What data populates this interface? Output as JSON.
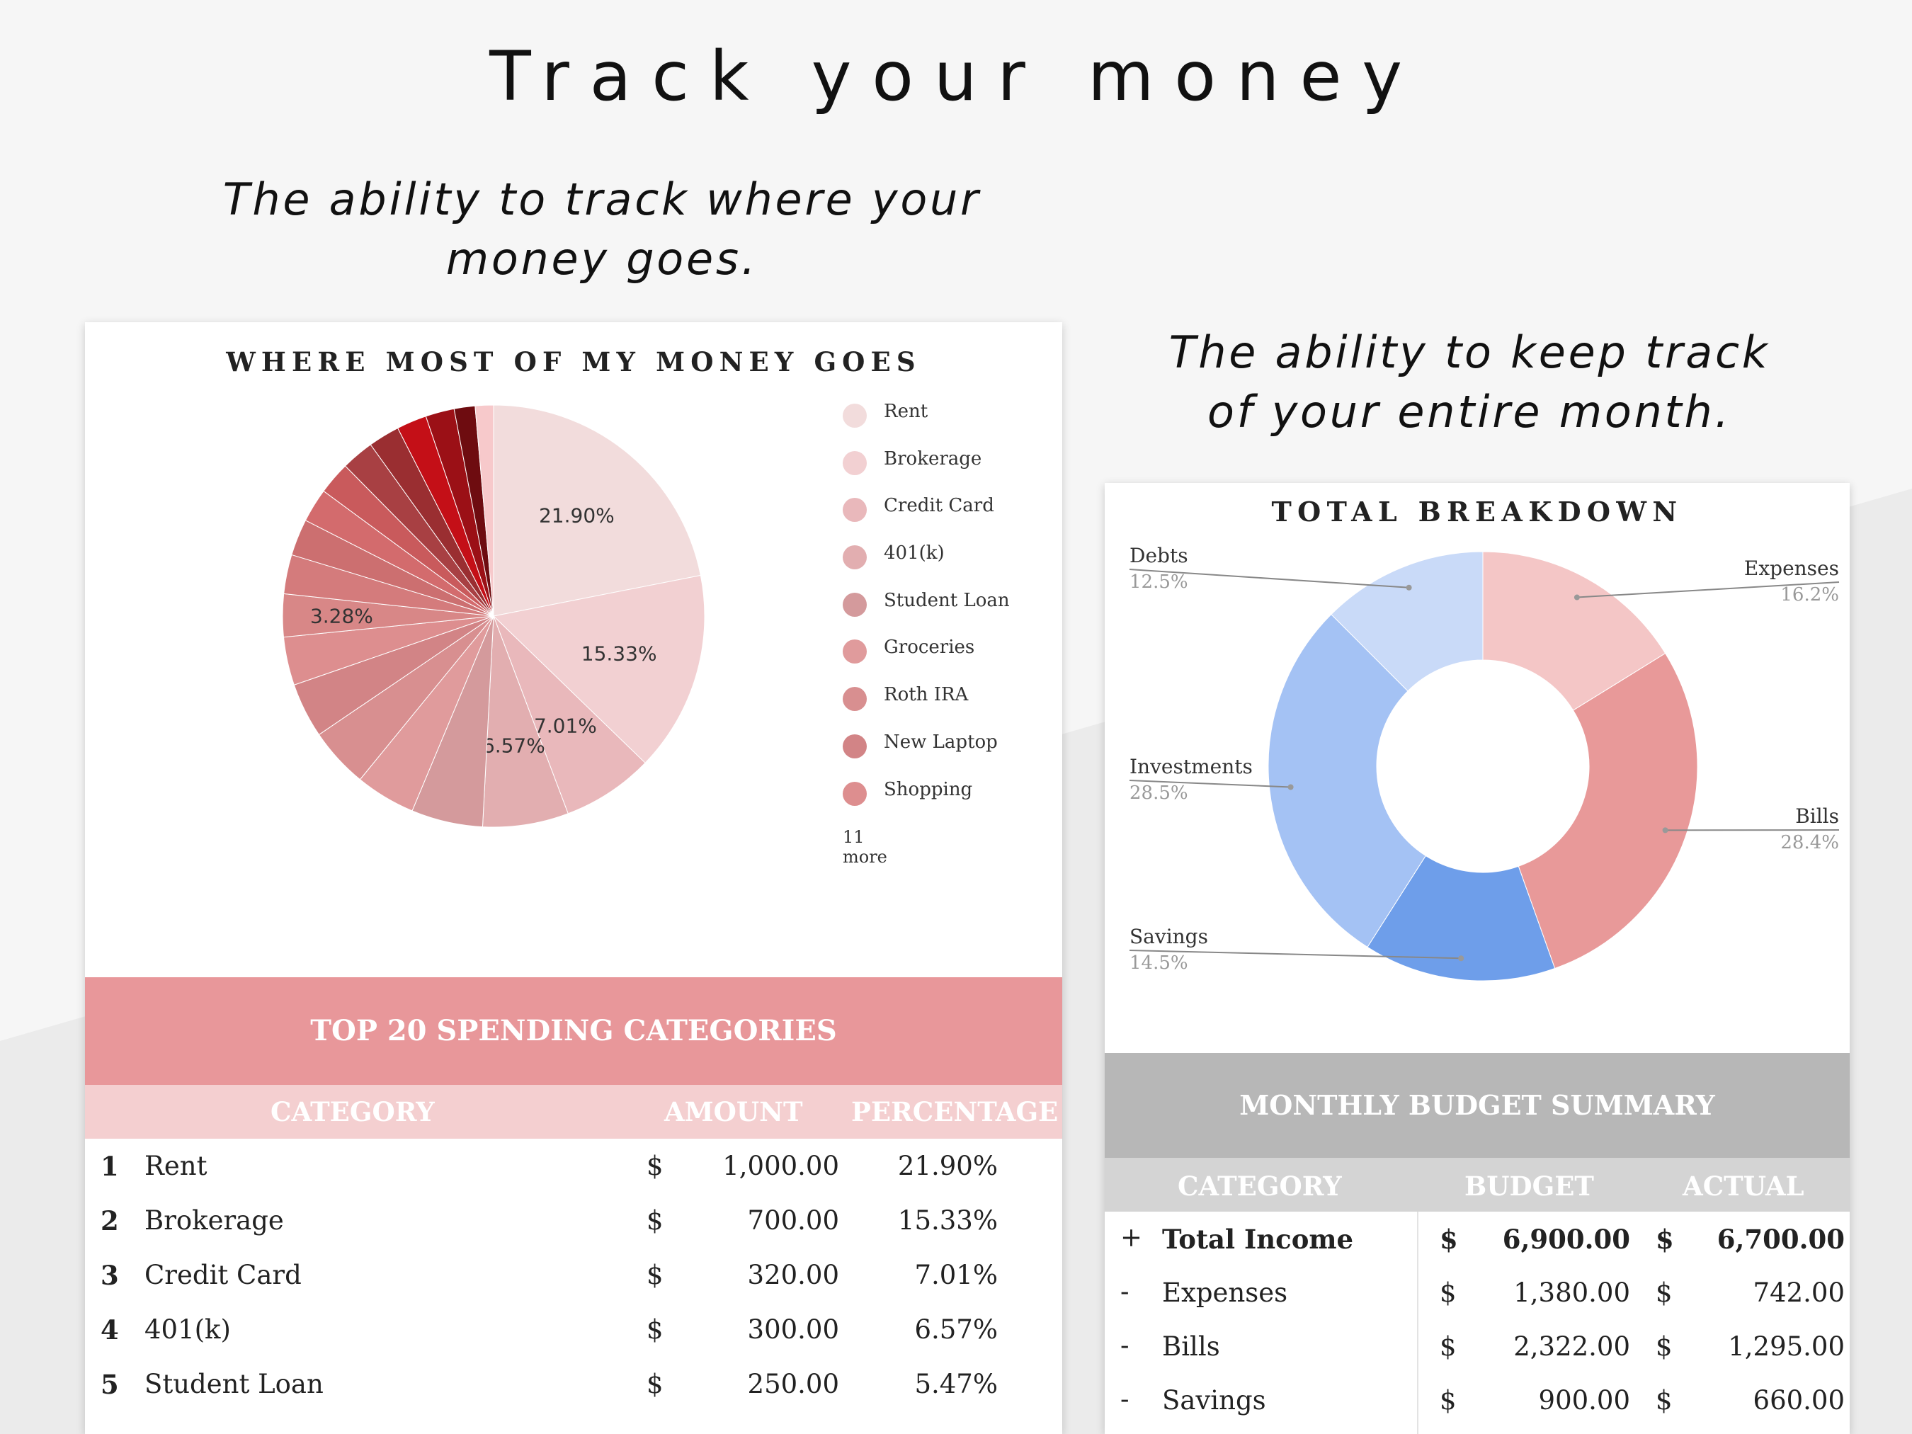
{
  "headline": "Track your money",
  "taglines": {
    "left": [
      "The ability to track where your",
      "money goes."
    ],
    "right": [
      "The ability to keep track",
      "of your entire month."
    ]
  },
  "spending": {
    "title": "WHERE MOST OF MY MONEY GOES",
    "legend_items": [
      "Rent",
      "Brokerage",
      "Credit Card",
      "401(k)",
      "Student Loan",
      "Groceries",
      "Roth IRA",
      "New Laptop",
      "Shopping"
    ],
    "legend_more": "11 more",
    "band_title": "TOP 20 SPENDING CATEGORIES",
    "columns": [
      "CATEGORY",
      "AMOUNT",
      "PERCENTAGE"
    ],
    "currency": "$",
    "rows": [
      {
        "num": "1",
        "category": "Rent",
        "amount": "1,000.00",
        "percentage": "21.90%"
      },
      {
        "num": "2",
        "category": "Brokerage",
        "amount": "700.00",
        "percentage": "15.33%"
      },
      {
        "num": "3",
        "category": "Credit Card",
        "amount": "320.00",
        "percentage": "7.01%"
      },
      {
        "num": "4",
        "category": "401(k)",
        "amount": "300.00",
        "percentage": "6.57%"
      },
      {
        "num": "5",
        "category": "Student Loan",
        "amount": "250.00",
        "percentage": "5.47%"
      }
    ]
  },
  "budget": {
    "title": "TOTAL BREAKDOWN",
    "band_title": "MONTHLY BUDGET SUMMARY",
    "columns": [
      "CATEGORY",
      "BUDGET",
      "ACTUAL"
    ],
    "currency": "$",
    "rows": [
      {
        "sign": "+",
        "category": "Total Income",
        "budget": "6,900.00",
        "actual": "6,700.00"
      },
      {
        "sign": "-",
        "category": "Expenses",
        "budget": "1,380.00",
        "actual": "742.00"
      },
      {
        "sign": "-",
        "category": "Bills",
        "budget": "2,322.00",
        "actual": "1,295.00"
      },
      {
        "sign": "-",
        "category": "Savings",
        "budget": "900.00",
        "actual": "660.00"
      }
    ]
  },
  "colors": {
    "spending_band": "#e8979a",
    "spending_header": "#f4cfd0",
    "budget_band": "#b7b7b7",
    "budget_header": "#d4d4d4"
  },
  "chart_data": [
    {
      "type": "pie",
      "title": "WHERE MOST OF MY MONEY GOES",
      "categories": [
        "Rent",
        "Brokerage",
        "Credit Card",
        "401(k)",
        "Student Loan",
        "Groceries",
        "Roth IRA",
        "New Laptop",
        "Shopping",
        "",
        "",
        "",
        "",
        "",
        "",
        "",
        "",
        "",
        "",
        ""
      ],
      "values": [
        21.9,
        15.33,
        7.01,
        6.57,
        5.47,
        4.6,
        4.6,
        4.2,
        3.7,
        3.28,
        3.0,
        2.8,
        2.6,
        2.5,
        2.5,
        2.4,
        2.3,
        2.2,
        1.6,
        1.4
      ],
      "data_labels": [
        "21.90%",
        "15.33%",
        "7.01%",
        "6.57%",
        "",
        "",
        "",
        "",
        "",
        "3.28%",
        "",
        "",
        "",
        "",
        "",
        "",
        "",
        "",
        "",
        ""
      ],
      "colors": [
        "#f2dcdc",
        "#f2d0d2",
        "#e9b8bb",
        "#e2aeb0",
        "#d49a9c",
        "#e09b9c",
        "#d88f90",
        "#d28486",
        "#dd8e8f",
        "#d88787",
        "#d47b7c",
        "#cc6f70",
        "#d36b6d",
        "#c95a5c",
        "#a84043",
        "#9a2e31",
        "#c40f17",
        "#9b1016",
        "#6e0c10",
        "#f7c9cb"
      ],
      "legend": "right"
    },
    {
      "type": "pie",
      "title": "TOTAL BREAKDOWN",
      "categories": [
        "Expenses",
        "Bills",
        "Savings",
        "Investments",
        "Debts"
      ],
      "values": [
        16.2,
        28.4,
        14.5,
        28.5,
        12.5
      ],
      "value_labels": [
        "16.2%",
        "28.4%",
        "14.5%",
        "28.5%",
        "12.5%"
      ],
      "colors": [
        "#f4c6c6",
        "#e89999",
        "#6e9eea",
        "#a4c2f4",
        "#c9daf8"
      ],
      "legend": "callouts"
    }
  ]
}
